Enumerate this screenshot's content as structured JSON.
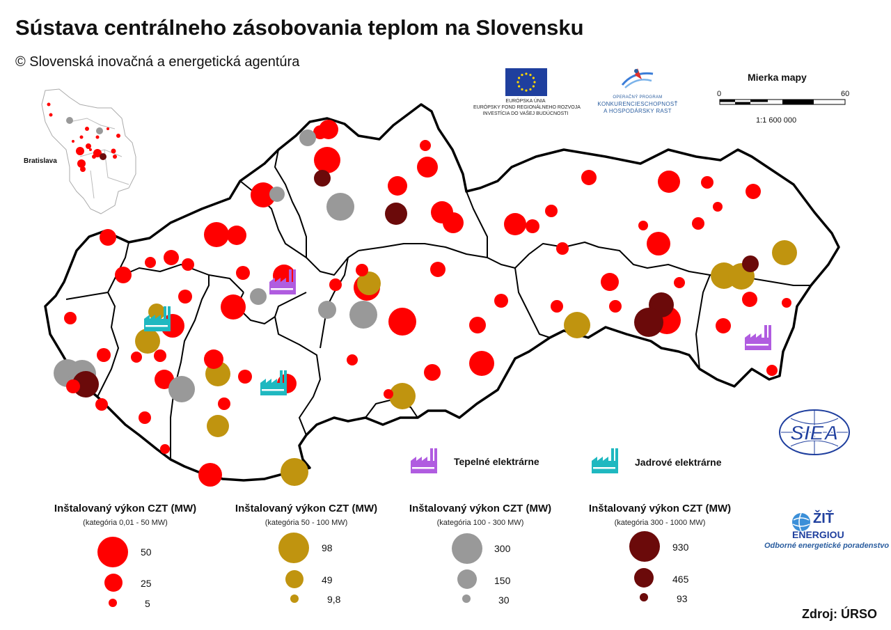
{
  "title": "Sústava centrálneho zásobovania teplom na Slovensku",
  "subtitle": "© Slovenská inovačná a energetická agentúra",
  "inset": {
    "label": "Bratislava"
  },
  "eu_logo": {
    "line1": "EURÓPSKA ÚNIA",
    "line2": "EURÓPSKY FOND REGIONÁLNEHO ROZVOJA",
    "line3": "INVESTÍCIA DO VAŠEJ BUDÚCNOSTI"
  },
  "op_logo": {
    "line1": "OPERAČNÝ PROGRAM",
    "line2": "KONKURENCIESCHOPNOSŤ",
    "line3": "A HOSPODÁRSKY RAST"
  },
  "scale": {
    "title": "Mierka mapy",
    "min": "0",
    "max": "60",
    "ratio": "1:1 600 000"
  },
  "plants": {
    "thermal": {
      "label": "Tepelné elektrárne",
      "color": "#b05ce0",
      "icon": "factory-icon"
    },
    "nuclear": {
      "label": "Jadrové elektrárne",
      "color": "#1fb8c0",
      "icon": "factory-icon"
    }
  },
  "legend": [
    {
      "title": "Inštalovaný výkon CZT (MW)",
      "subtitle": "(kategória 0,01 - 50 MW)",
      "color": "#ff0000",
      "values": [
        "50",
        "25",
        "5"
      ]
    },
    {
      "title": "Inštalovaný výkon CZT (MW)",
      "subtitle": "(kategória 50 - 100 MW)",
      "color": "#c0940f",
      "values": [
        "98",
        "49",
        "9,8"
      ]
    },
    {
      "title": "Inštalovaný výkon CZT (MW)",
      "subtitle": "(kategória 100 - 300 MW)",
      "color": "#999999",
      "values": [
        "300",
        "150",
        "30"
      ]
    },
    {
      "title": "Inštalovaný výkon CZT (MW)",
      "subtitle": "(kategória 300 - 1000 MW)",
      "color": "#6b0a0a",
      "values": [
        "930",
        "465",
        "93"
      ]
    }
  ],
  "sied_logo": {
    "text": "SIEA"
  },
  "zit_logo": {
    "line1": "ŽIŤ",
    "line2": "ENERGIOU",
    "tagline": "Odborné energetické poradenstvo"
  },
  "source": "Zdroj: ÚRSO"
}
